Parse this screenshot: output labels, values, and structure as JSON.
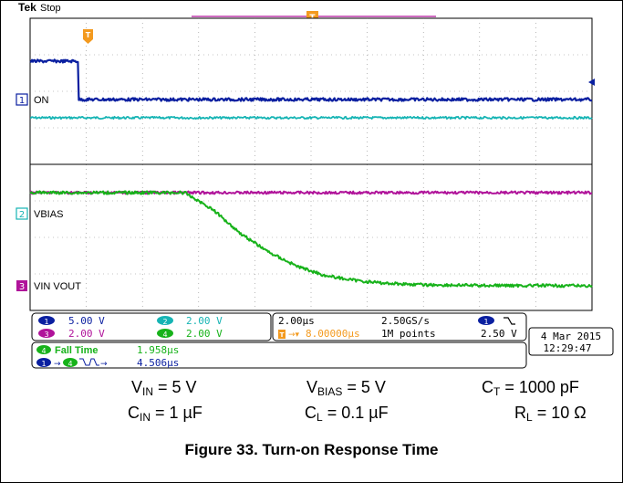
{
  "brand": "Tek",
  "acq_state": "Stop",
  "colors": {
    "ch1": "#0a1fa0",
    "ch2": "#16b4b4",
    "ch3": "#b0139a",
    "ch4": "#17b21a",
    "trigger": "#f39a1f",
    "grid": "#8a8a8a"
  },
  "channels": [
    {
      "num": "1",
      "name": "ON",
      "scale": "5.00 V",
      "color": "#0a1fa0"
    },
    {
      "num": "2",
      "name": "VBIAS",
      "scale": "2.00 V",
      "color": "#16b4b4"
    },
    {
      "num": "3",
      "name": "VIN VOUT",
      "scale": "2.00 V",
      "color": "#b0139a"
    },
    {
      "num": "4",
      "name": "",
      "scale": "2.00 V",
      "color": "#17b21a"
    }
  ],
  "timebase": {
    "horizontal_scale": "2.00µs",
    "sample_rate": "2.50GS/s",
    "trigger_position": "8.00000µs",
    "record_length": "1M points",
    "trigger_level": "2.50 V",
    "trigger_source": "1",
    "trigger_marker": "T"
  },
  "date": "4 Mar 2015",
  "time": "12:29:47",
  "measurements": [
    {
      "source": "4",
      "label": "Fall Time",
      "value": "1.958µs"
    },
    {
      "source": "1",
      "target": "4",
      "label": "",
      "value": "4.506µs"
    }
  ],
  "conditions": {
    "row1": [
      {
        "sym": "V",
        "sub": "IN",
        "val": " = 5 V"
      },
      {
        "sym": "V",
        "sub": "BIAS",
        "val": " = 5 V"
      },
      {
        "sym": "C",
        "sub": "T",
        "val": " = 1000 pF"
      }
    ],
    "row2": [
      {
        "sym": "C",
        "sub": "IN",
        "val": " = 1 µF"
      },
      {
        "sym": "C",
        "sub": "L",
        "val": " = 0.1 µF"
      },
      {
        "sym": "R",
        "sub": "L",
        "val": " = 10 Ω"
      }
    ]
  },
  "figure_caption": "Figure 33. Turn-on Response Time",
  "chart_data": {
    "type": "line",
    "x_unit": "µs",
    "xlim": [
      -8,
      12
    ],
    "divisions": {
      "x": 10,
      "y": 8
    },
    "series": [
      {
        "name": "1",
        "points": [
          [
            -8,
            5.0
          ],
          [
            -6.3,
            5.0
          ],
          [
            -6.3,
            0.0
          ],
          [
            12,
            0.0
          ]
        ]
      },
      {
        "name": "2",
        "points": [
          [
            -8,
            0.0
          ],
          [
            12,
            0.0
          ]
        ]
      },
      {
        "name": "3",
        "points": [
          [
            -8,
            5.0
          ],
          [
            12,
            5.0
          ]
        ]
      },
      {
        "name": "4",
        "points": [
          [
            -8,
            5.0
          ],
          [
            -2.5,
            5.0
          ],
          [
            -1.5,
            4.1
          ],
          [
            -0.5,
            2.8
          ],
          [
            0.5,
            1.8
          ],
          [
            1.5,
            1.05
          ],
          [
            2.5,
            0.55
          ],
          [
            3.5,
            0.3
          ],
          [
            4.5,
            0.15
          ],
          [
            6.0,
            0.05
          ],
          [
            8.0,
            0.02
          ],
          [
            12,
            0.0
          ]
        ]
      }
    ]
  }
}
